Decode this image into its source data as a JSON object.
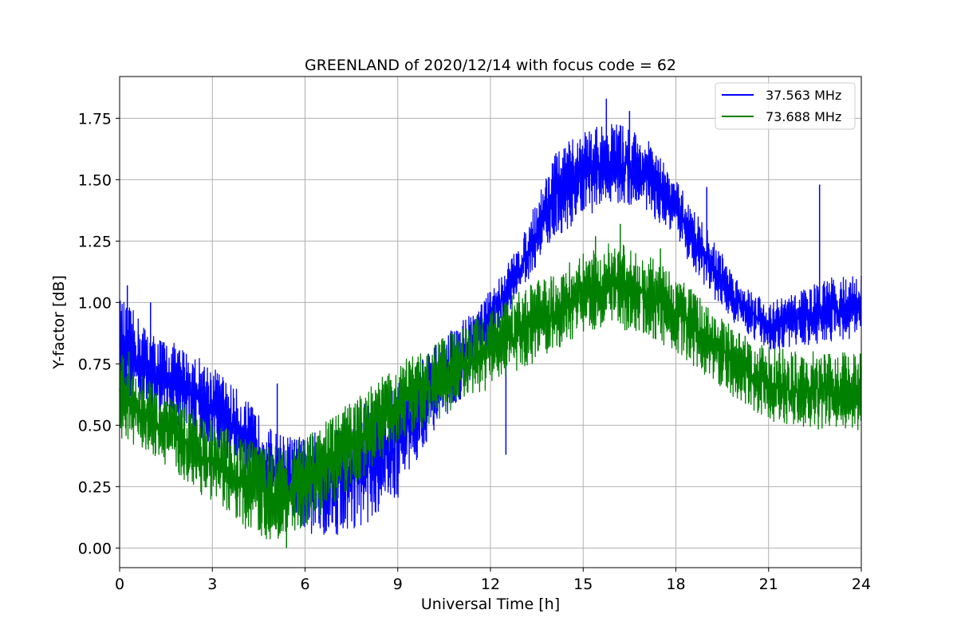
{
  "chart_data": {
    "type": "line",
    "title": "GREENLAND of 2020/12/14 with focus code = 62",
    "xlabel": "Universal Time [h]",
    "ylabel": "Y-factor [dB]",
    "xlim": [
      0,
      24
    ],
    "ylim": [
      -0.08,
      1.92
    ],
    "xticks": [
      0,
      3,
      6,
      9,
      12,
      15,
      18,
      21,
      24
    ],
    "xtick_labels": [
      "0",
      "3",
      "6",
      "9",
      "12",
      "15",
      "18",
      "21",
      "24"
    ],
    "yticks": [
      0.0,
      0.25,
      0.5,
      0.75,
      1.0,
      1.25,
      1.5,
      1.75
    ],
    "ytick_labels": [
      "0.00",
      "0.25",
      "0.50",
      "0.75",
      "1.00",
      "1.25",
      "1.50",
      "1.75"
    ],
    "grid": true,
    "legend_position": "top-right",
    "series": [
      {
        "name": "37.563 MHz",
        "color": "#0000ff",
        "x": [
          0,
          0.5,
          1,
          2,
          3,
          4,
          5,
          6,
          7,
          8,
          9,
          10,
          11,
          12,
          13,
          14,
          15,
          16,
          17,
          18,
          19,
          20,
          21,
          22,
          23,
          24
        ],
        "lower": [
          0.63,
          0.6,
          0.56,
          0.49,
          0.41,
          0.3,
          0.17,
          0.06,
          0.05,
          0.1,
          0.2,
          0.45,
          0.6,
          0.82,
          1.05,
          1.25,
          1.35,
          1.4,
          1.38,
          1.25,
          1.05,
          0.9,
          0.8,
          0.82,
          0.84,
          0.86
        ],
        "upper": [
          1.02,
          0.96,
          0.88,
          0.82,
          0.75,
          0.62,
          0.47,
          0.45,
          0.52,
          0.6,
          0.7,
          0.8,
          0.92,
          1.05,
          1.25,
          1.6,
          1.7,
          1.74,
          1.68,
          1.5,
          1.3,
          1.1,
          1.0,
          1.05,
          1.1,
          1.12
        ],
        "spikes": [
          {
            "x": 0.25,
            "y": 1.07
          },
          {
            "x": 1.0,
            "y": 1.0
          },
          {
            "x": 5.1,
            "y": 0.67
          },
          {
            "x": 12.5,
            "y": 0.38
          },
          {
            "x": 15.75,
            "y": 1.83
          },
          {
            "x": 16.5,
            "y": 1.78
          },
          {
            "x": 19.0,
            "y": 1.47
          },
          {
            "x": 22.65,
            "y": 1.48
          }
        ]
      },
      {
        "name": "73.688 MHz",
        "color": "#008000",
        "x": [
          0,
          0.5,
          1,
          2,
          3,
          4,
          5,
          6,
          7,
          8,
          9,
          10,
          11,
          12,
          13,
          14,
          15,
          16,
          17,
          18,
          19,
          20,
          21,
          22,
          23,
          24
        ],
        "lower": [
          0.45,
          0.42,
          0.38,
          0.28,
          0.18,
          0.08,
          0.02,
          0.08,
          0.18,
          0.3,
          0.42,
          0.5,
          0.58,
          0.65,
          0.72,
          0.8,
          0.88,
          0.9,
          0.86,
          0.8,
          0.7,
          0.6,
          0.52,
          0.48,
          0.48,
          0.48
        ],
        "upper": [
          0.8,
          0.72,
          0.68,
          0.6,
          0.52,
          0.45,
          0.42,
          0.45,
          0.55,
          0.65,
          0.75,
          0.82,
          0.9,
          0.98,
          1.05,
          1.12,
          1.2,
          1.25,
          1.2,
          1.12,
          1.0,
          0.88,
          0.82,
          0.8,
          0.8,
          0.8
        ],
        "spikes": [
          {
            "x": 0.3,
            "y": 0.8
          },
          {
            "x": 5.4,
            "y": 0.0
          },
          {
            "x": 15.4,
            "y": 1.27
          },
          {
            "x": 16.2,
            "y": 1.32
          },
          {
            "x": 17.5,
            "y": 1.22
          }
        ]
      }
    ]
  }
}
